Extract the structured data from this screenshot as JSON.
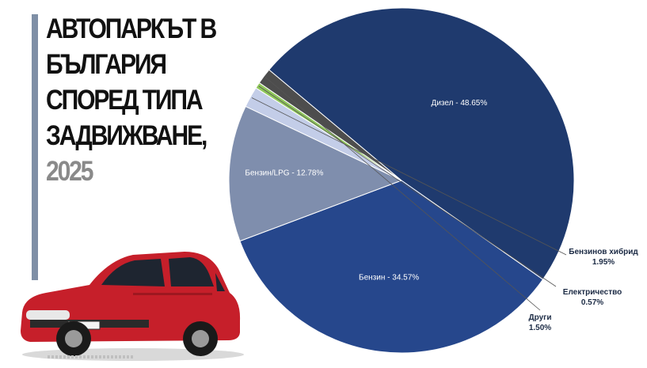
{
  "title": {
    "lines": [
      "АВТОПАРКЪТ В",
      "БЪЛГАРИЯ",
      "СПОРЕД ТИПА",
      "ЗАДВИЖВАНЕ,"
    ],
    "year": "2025"
  },
  "colors": {
    "accent_bar": "#7f8fa6",
    "car_body": "#c61f2a"
  },
  "chart_data": {
    "type": "pie",
    "title": "АВТОПАРКЪТ В БЪЛГАРИЯ СПОРЕД ТИПА ЗАДВИЖВАНЕ, 2025",
    "start_angle_deg": 125,
    "direction": "clockwise",
    "slices": [
      {
        "name": "Бензин",
        "value": 34.57,
        "color": "#26478c",
        "label": "Бензин - 34.57%",
        "label_inside": true
      },
      {
        "name": "Бензин/LPG",
        "value": 12.78,
        "color": "#7f8ead",
        "label": "Бензин/LPG - 12.78%",
        "label_inside": true
      },
      {
        "name": "Бензинов хибрид",
        "value": 1.95,
        "color": "#c3cde8",
        "label_lines": [
          "Бензинов хибрид",
          "1.95%"
        ],
        "label_inside": false
      },
      {
        "name": "Електричество",
        "value": 0.57,
        "color": "#8fc65a",
        "label_lines": [
          "Електричество",
          "0.57%"
        ],
        "label_inside": false
      },
      {
        "name": "Други",
        "value": 1.5,
        "color": "#4d4d4d",
        "label_lines": [
          "Други",
          "1.50%"
        ],
        "label_inside": false
      },
      {
        "name": "Дизел",
        "value": 48.65,
        "color": "#1f3a6e",
        "label": "Дизел - 48.65%",
        "label_inside": true
      }
    ]
  }
}
